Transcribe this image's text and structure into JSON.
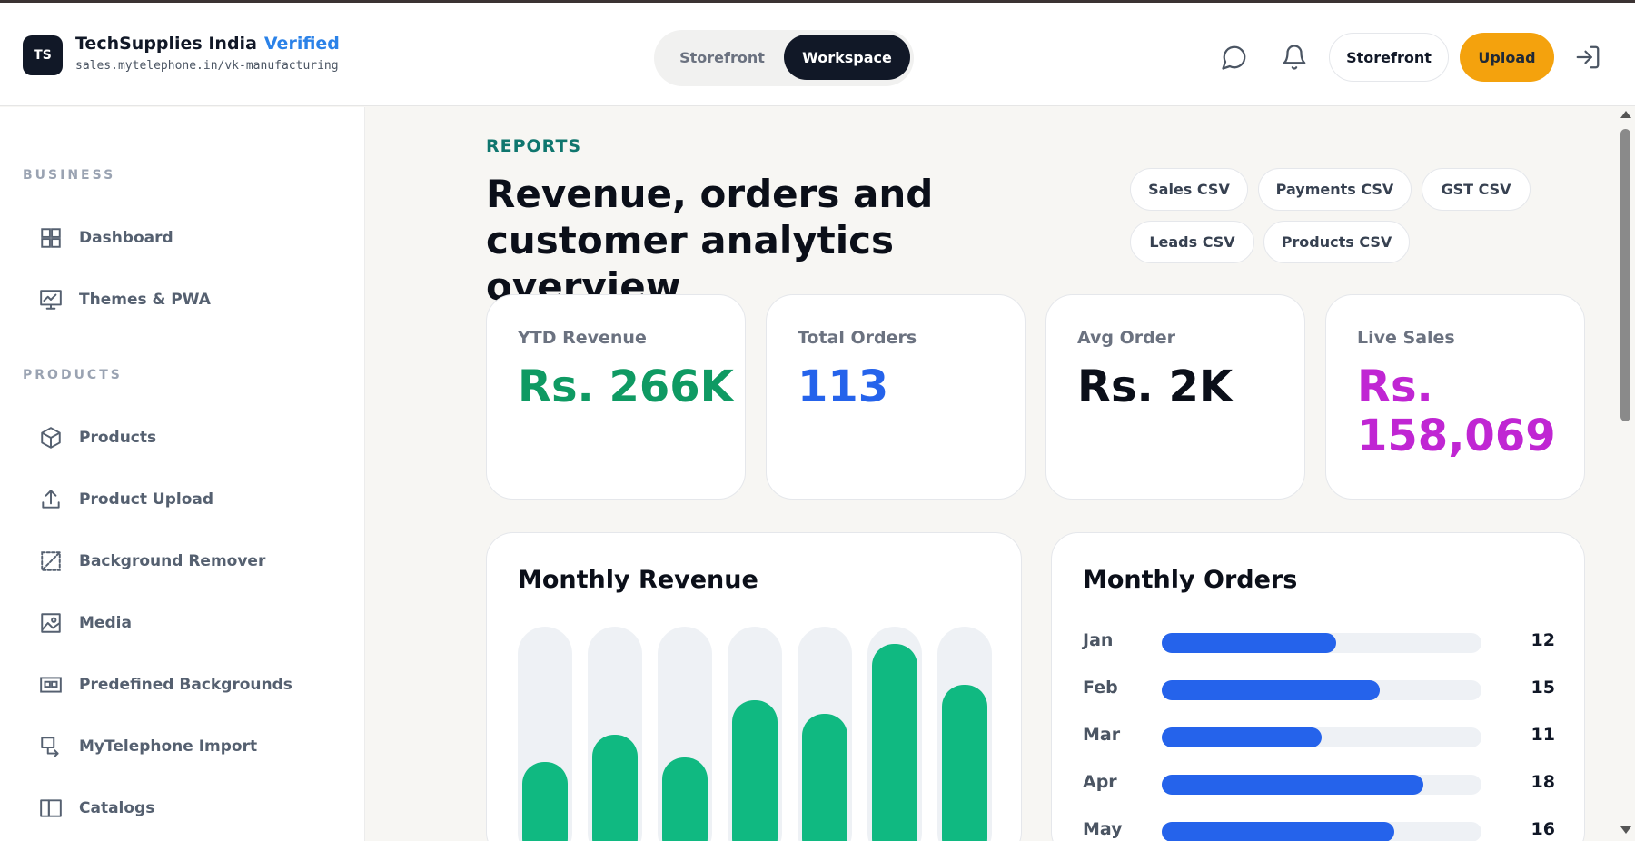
{
  "header": {
    "logo_initials": "TS",
    "store_name": "TechSupplies India",
    "verified_label": "Verified",
    "store_url": "sales.mytelephone.in/vk-manufacturing",
    "mode_toggle": [
      "Storefront",
      "Workspace"
    ],
    "active_mode": "Workspace",
    "storefront_button": "Storefront",
    "upload_button": "Upload",
    "icons": [
      "chat-icon",
      "bell-icon",
      "logout-icon"
    ]
  },
  "sidebar": {
    "sections": [
      {
        "label": "BUSINESS",
        "items": [
          {
            "label": "Dashboard",
            "icon": "grid-icon"
          },
          {
            "label": "Themes & PWA",
            "icon": "monitor-chart-icon"
          }
        ]
      },
      {
        "label": "PRODUCTS",
        "items": [
          {
            "label": "Products",
            "icon": "box-icon"
          },
          {
            "label": "Product Upload",
            "icon": "upload-icon"
          },
          {
            "label": "Background Remover",
            "icon": "magic-eraser-icon"
          },
          {
            "label": "Media",
            "icon": "image-icon"
          },
          {
            "label": "Predefined Backgrounds",
            "icon": "frame-icon"
          },
          {
            "label": "MyTelephone Import",
            "icon": "import-icon"
          },
          {
            "label": "Catalogs",
            "icon": "book-icon"
          }
        ]
      }
    ]
  },
  "main": {
    "eyebrow": "REPORTS",
    "title": "Revenue, orders and customer analytics overview",
    "exports": [
      "Sales CSV",
      "Payments CSV",
      "GST CSV",
      "Leads CSV",
      "Products CSV"
    ],
    "kpis": [
      {
        "label": "YTD Revenue",
        "value": "Rs. 266K",
        "color": "#0f9a63"
      },
      {
        "label": "Total Orders",
        "value": "113",
        "color": "#2563eb"
      },
      {
        "label": "Avg Order",
        "value": "Rs. 2K",
        "color": "#0b0f19"
      },
      {
        "label": "Live Sales",
        "value": "Rs. 158,069",
        "color": "#c026d3"
      }
    ],
    "revenue_card_title": "Monthly Revenue",
    "orders_card_title": "Monthly Orders"
  },
  "chart_data": [
    {
      "type": "bar",
      "title": "Monthly Revenue",
      "categories": [
        "",
        "",
        "",
        "",
        "",
        "",
        ""
      ],
      "values": [
        0.43,
        0.55,
        0.45,
        0.7,
        0.64,
        0.95,
        0.77
      ],
      "ylim": [
        0,
        1
      ],
      "grid": false,
      "color": "#10b981"
    },
    {
      "type": "bar",
      "orientation": "horizontal",
      "title": "Monthly Orders",
      "categories": [
        "Jan",
        "Feb",
        "Mar",
        "Apr",
        "May"
      ],
      "values": [
        12,
        15,
        11,
        18,
        16
      ],
      "xlim": [
        0,
        22
      ],
      "color": "#2563eb"
    }
  ]
}
